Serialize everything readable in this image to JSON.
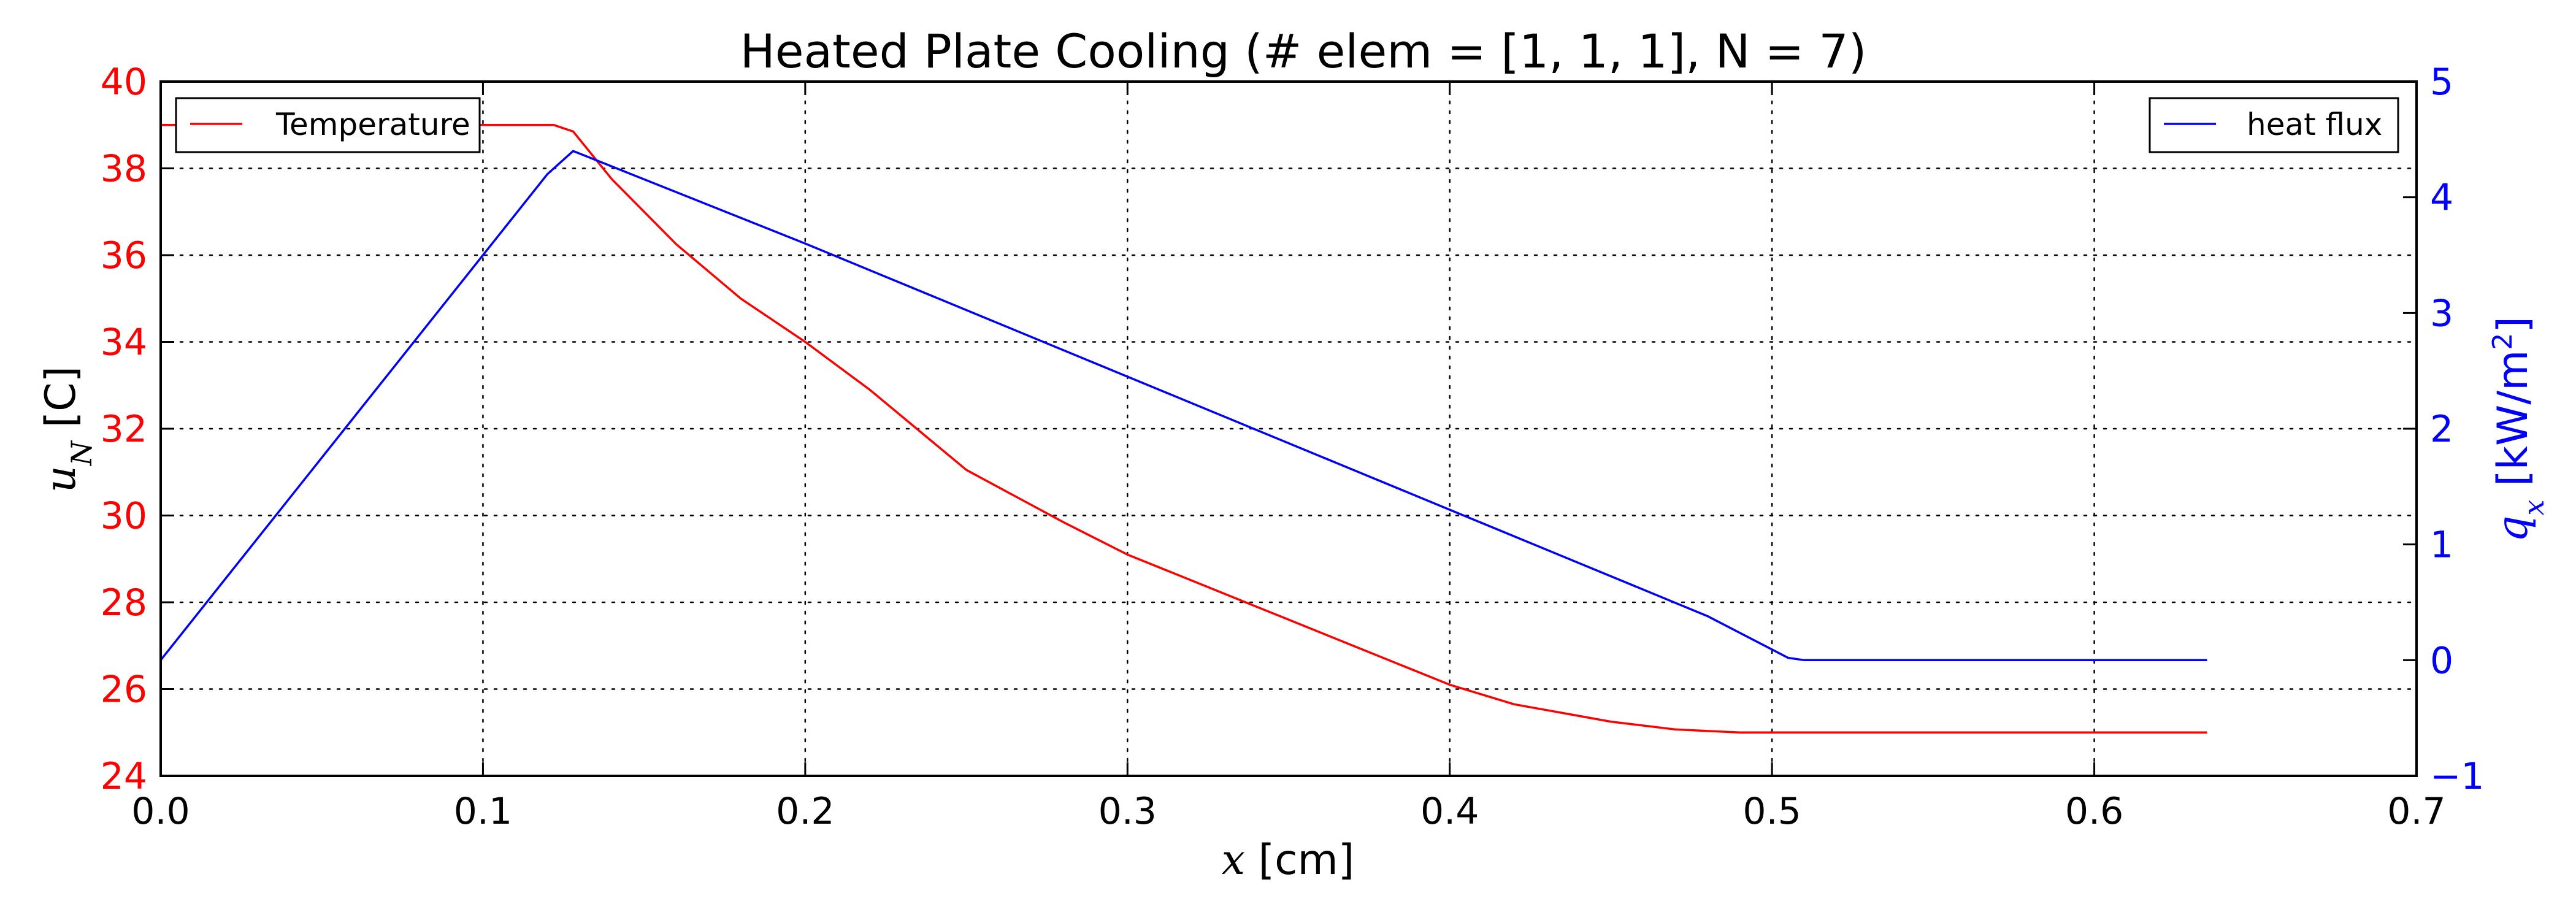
{
  "chart_data": {
    "type": "line",
    "title": "Heated Plate Cooling (# elem = [1, 1, 1], N = 7)",
    "grid": true,
    "x_axis": {
      "var": "x",
      "unit": " [cm]",
      "range": [
        0.0,
        0.7
      ],
      "ticks": [
        0.0,
        0.1,
        0.2,
        0.3,
        0.4,
        0.5,
        0.6,
        0.7
      ],
      "tick_labels": [
        "0.0",
        "0.1",
        "0.2",
        "0.3",
        "0.4",
        "0.5",
        "0.6",
        "0.7"
      ]
    },
    "y_axis_left": {
      "var": "u",
      "sub": "N",
      "unit": " [C]",
      "color": "#ff0000",
      "range": [
        24,
        40
      ],
      "ticks": [
        24,
        26,
        28,
        30,
        32,
        34,
        36,
        38,
        40
      ],
      "tick_labels": [
        "24",
        "26",
        "28",
        "30",
        "32",
        "34",
        "36",
        "38",
        "40"
      ]
    },
    "y_axis_right": {
      "var": "q",
      "sub": "x",
      "unit_pre": " [kW/m",
      "unit_sup": "2",
      "unit_post": "]",
      "color": "#0000ff",
      "range": [
        -1,
        5
      ],
      "ticks": [
        -1,
        0,
        1,
        2,
        3,
        4,
        5
      ],
      "tick_labels": [
        "−1",
        "0",
        "1",
        "2",
        "3",
        "4",
        "5"
      ]
    },
    "series": [
      {
        "name": "Temperature",
        "axis": "left",
        "color": "#ff0000",
        "legend": "upper left",
        "x": [
          0.0,
          0.02,
          0.05,
          0.08,
          0.1,
          0.122,
          0.128,
          0.14,
          0.16,
          0.18,
          0.2,
          0.22,
          0.25,
          0.28,
          0.3,
          0.33,
          0.35,
          0.38,
          0.4,
          0.42,
          0.45,
          0.47,
          0.49,
          0.5,
          0.507,
          0.52,
          0.55,
          0.6,
          0.635
        ],
        "y": [
          39.0,
          39.0,
          39.0,
          39.0,
          39.0,
          39.0,
          38.85,
          37.75,
          36.25,
          35.0,
          34.0,
          32.9,
          31.05,
          29.85,
          29.1,
          28.2,
          27.6,
          26.7,
          26.1,
          25.65,
          25.25,
          25.07,
          25.0,
          25.0,
          25.0,
          25.0,
          25.0,
          25.0,
          25.0
        ]
      },
      {
        "name": "heat flux",
        "axis": "right",
        "color": "#0000ff",
        "legend": "upper right",
        "x": [
          0.0,
          0.12,
          0.128,
          0.2,
          0.3,
          0.4,
          0.48,
          0.505,
          0.51,
          0.52,
          0.55,
          0.6,
          0.635
        ],
        "y": [
          0.0,
          4.2,
          4.4,
          3.6,
          2.45,
          1.3,
          0.38,
          0.02,
          0.0,
          0.0,
          0.0,
          0.0,
          0.0
        ]
      }
    ]
  }
}
